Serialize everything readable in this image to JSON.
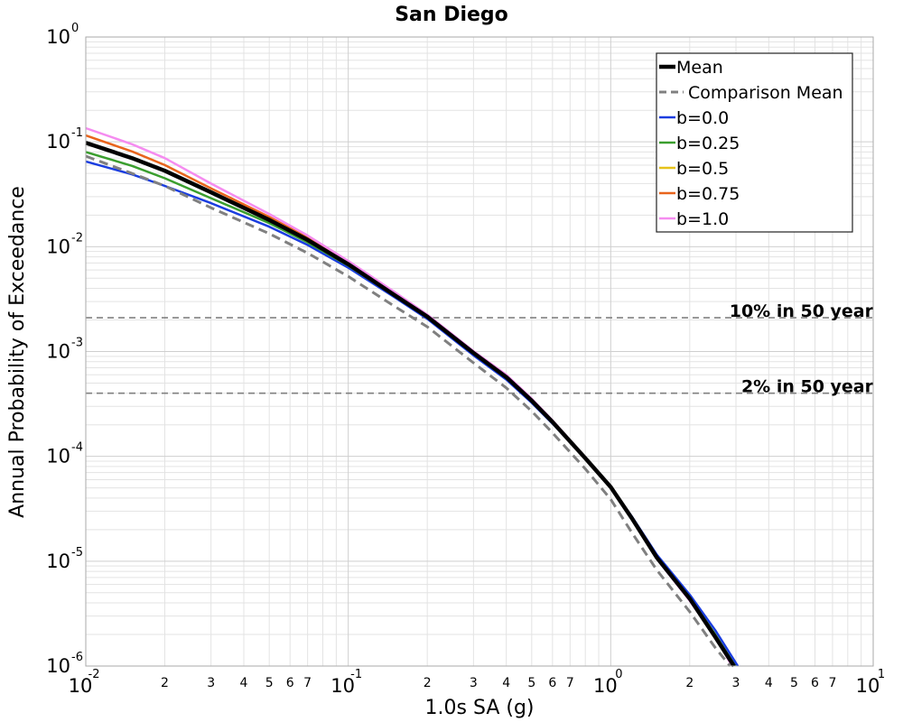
{
  "chart_data": {
    "type": "line",
    "title": "San Diego",
    "xlabel": "1.0s SA (g)",
    "ylabel": "Annual Probability of Exceedance",
    "xscale": "log",
    "yscale": "log",
    "xlim": [
      0.01,
      10
    ],
    "ylim": [
      1e-06,
      1
    ],
    "grid": true,
    "legend_position": "top-right",
    "x_major_ticks": [
      {
        "value": 0.01,
        "base": "10",
        "exp": "-2"
      },
      {
        "value": 0.1,
        "base": "10",
        "exp": "-1"
      },
      {
        "value": 1,
        "base": "10",
        "exp": "0"
      },
      {
        "value": 10,
        "base": "10",
        "exp": "1"
      }
    ],
    "x_minor_labels": [
      "2",
      "3",
      "4",
      "5",
      "6",
      "7"
    ],
    "y_major_ticks": [
      {
        "value": 1,
        "base": "10",
        "exp": "0"
      },
      {
        "value": 0.1,
        "base": "10",
        "exp": "-1"
      },
      {
        "value": 0.01,
        "base": "10",
        "exp": "-2"
      },
      {
        "value": 0.001,
        "base": "10",
        "exp": "-3"
      },
      {
        "value": 0.0001,
        "base": "10",
        "exp": "-4"
      },
      {
        "value": 1e-05,
        "base": "10",
        "exp": "-5"
      },
      {
        "value": 1e-06,
        "base": "10",
        "exp": "-6"
      }
    ],
    "hlines": [
      {
        "label": "10% in 50 year",
        "y": 0.0021,
        "color": "#808080"
      },
      {
        "label": "2% in 50 year",
        "y": 0.0004,
        "color": "#808080"
      }
    ],
    "series": [
      {
        "name": "b=0.0",
        "color": "#1a3de0",
        "dash": "solid",
        "width": 2.5,
        "x": [
          0.01,
          0.015,
          0.02,
          0.03,
          0.05,
          0.07,
          0.1,
          0.15,
          0.2,
          0.3,
          0.4,
          0.5,
          0.6,
          0.8,
          1.0,
          1.2,
          1.5,
          2.0,
          2.5,
          3.05
        ],
        "y": [
          0.065,
          0.049,
          0.038,
          0.026,
          0.0155,
          0.0104,
          0.0063,
          0.0033,
          0.00205,
          0.00092,
          0.00054,
          0.000325,
          0.000206,
          9.5e-05,
          5.1e-05,
          2.7e-05,
          1.15e-05,
          4.8e-06,
          2.2e-06,
          1e-06
        ]
      },
      {
        "name": "b=0.25",
        "color": "#3a9e2e",
        "dash": "solid",
        "width": 2.5,
        "x": [
          0.01,
          0.015,
          0.02,
          0.03,
          0.05,
          0.07,
          0.1,
          0.15,
          0.2,
          0.3,
          0.4,
          0.5,
          0.6,
          0.8,
          1.0,
          1.2,
          1.5,
          2.0,
          2.5,
          2.98
        ],
        "y": [
          0.08,
          0.059,
          0.045,
          0.029,
          0.0168,
          0.011,
          0.0066,
          0.0034,
          0.00212,
          0.00096,
          0.00056,
          0.000336,
          0.000212,
          9.6e-05,
          5.1e-05,
          2.6e-05,
          1.1e-05,
          4.5e-06,
          2e-06,
          1e-06
        ]
      },
      {
        "name": "b=0.5",
        "color": "#e6c21a",
        "dash": "solid",
        "width": 2.5,
        "x": [
          0.01,
          0.015,
          0.02,
          0.03,
          0.05,
          0.07,
          0.1,
          0.15,
          0.2,
          0.3,
          0.4,
          0.5,
          0.6,
          0.8,
          1.0,
          1.2,
          1.5,
          2.0,
          2.5,
          2.95
        ],
        "y": [
          0.098,
          0.07,
          0.053,
          0.033,
          0.0182,
          0.0117,
          0.0069,
          0.0035,
          0.00218,
          0.00099,
          0.00058,
          0.000345,
          0.000216,
          9.7e-05,
          5.1e-05,
          2.6e-05,
          1.08e-05,
          4.4e-06,
          1.9e-06,
          1e-06
        ]
      },
      {
        "name": "b=0.75",
        "color": "#e8641c",
        "dash": "solid",
        "width": 2.5,
        "x": [
          0.01,
          0.015,
          0.02,
          0.03,
          0.05,
          0.07,
          0.1,
          0.15,
          0.2,
          0.3,
          0.4,
          0.5,
          0.6,
          0.8,
          1.0,
          1.2,
          1.5,
          2.0,
          2.5,
          2.93
        ],
        "y": [
          0.115,
          0.081,
          0.06,
          0.036,
          0.0192,
          0.0122,
          0.0071,
          0.0036,
          0.00222,
          0.001,
          0.00059,
          0.00035,
          0.000219,
          9.8e-05,
          5.1e-05,
          2.6e-05,
          1.06e-05,
          4.3e-06,
          1.9e-06,
          1e-06
        ]
      },
      {
        "name": "b=1.0",
        "color": "#f58cf0",
        "dash": "solid",
        "width": 2.5,
        "x": [
          0.01,
          0.015,
          0.02,
          0.03,
          0.05,
          0.07,
          0.1,
          0.15,
          0.2,
          0.3,
          0.4,
          0.5,
          0.6,
          0.8,
          1.0,
          1.2,
          1.5,
          2.0,
          2.5,
          2.9
        ],
        "y": [
          0.135,
          0.095,
          0.07,
          0.04,
          0.0205,
          0.0128,
          0.0073,
          0.0037,
          0.00225,
          0.00101,
          0.0006,
          0.000355,
          0.000221,
          9.8e-05,
          5.1e-05,
          2.6e-05,
          1.05e-05,
          4.2e-06,
          1.9e-06,
          1e-06
        ]
      },
      {
        "name": "Mean",
        "color": "#000000",
        "dash": "solid",
        "width": 4.5,
        "x": [
          0.01,
          0.015,
          0.02,
          0.03,
          0.05,
          0.07,
          0.1,
          0.15,
          0.2,
          0.3,
          0.4,
          0.5,
          0.6,
          0.8,
          1.0,
          1.2,
          1.5,
          2.0,
          2.5,
          2.95
        ],
        "y": [
          0.098,
          0.07,
          0.053,
          0.033,
          0.018,
          0.0116,
          0.0068,
          0.00345,
          0.00215,
          0.00097,
          0.00057,
          0.00034,
          0.000213,
          9.6e-05,
          5.1e-05,
          2.6e-05,
          1.08e-05,
          4.4e-06,
          1.9e-06,
          1e-06
        ]
      },
      {
        "name": "Comparison Mean",
        "color": "#808080",
        "dash": "dashed",
        "width": 3,
        "x": [
          0.01,
          0.015,
          0.02,
          0.03,
          0.05,
          0.07,
          0.1,
          0.15,
          0.2,
          0.3,
          0.4,
          0.5,
          0.6,
          0.8,
          1.0,
          1.2,
          1.5,
          2.0,
          2.5,
          2.85
        ],
        "y": [
          0.073,
          0.05,
          0.038,
          0.0235,
          0.0133,
          0.0087,
          0.0052,
          0.0027,
          0.00172,
          0.00078,
          0.00045,
          0.00027,
          0.000168,
          7.6e-05,
          3.9e-05,
          1.9e-05,
          8.2e-06,
          3.3e-06,
          1.5e-06,
          1e-06
        ]
      }
    ],
    "legend_order": [
      "Mean",
      "Comparison Mean",
      "b=0.0",
      "b=0.25",
      "b=0.5",
      "b=0.75",
      "b=1.0"
    ]
  }
}
